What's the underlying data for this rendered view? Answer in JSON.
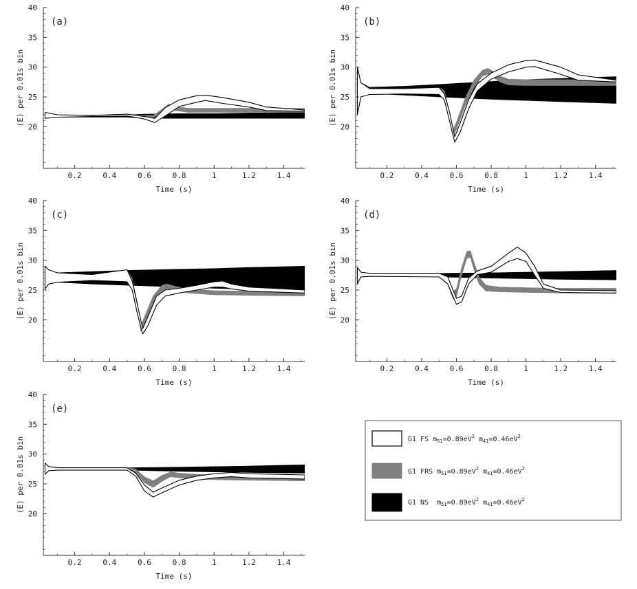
{
  "chart_data": [
    {
      "type": "area",
      "panel": "(a)",
      "xlabel": "Time (s)",
      "ylabel": "⟨E⟩ per 0.01s bin",
      "xlim": [
        0.02,
        1.52
      ],
      "ylim": [
        13,
        40
      ],
      "xticks": [
        0.2,
        0.4,
        0.6,
        0.8,
        1.0,
        1.2,
        1.4
      ],
      "xtick_labels": [
        "0.2",
        "0.4",
        "0.6",
        "0.8",
        "1",
        "1.2",
        "1.4"
      ],
      "yticks": [
        20,
        25,
        30,
        35,
        40
      ],
      "series": [
        {
          "name": "G1 NS",
          "style": "black",
          "x": [
            0.03,
            0.1,
            0.5,
            0.6,
            0.8,
            1.0,
            1.2,
            1.52
          ],
          "lower": [
            21.6,
            21.6,
            21.6,
            21.4,
            21.4,
            21.4,
            21.4,
            21.4
          ],
          "upper": [
            22.2,
            21.9,
            22.0,
            22.1,
            22.2,
            22.2,
            22.3,
            22.4
          ]
        },
        {
          "name": "G1 FRS",
          "style": "gray",
          "x": [
            0.03,
            0.1,
            0.3,
            0.5,
            0.6,
            0.65,
            0.7,
            0.74,
            0.78,
            0.85,
            1.0,
            1.2,
            1.52
          ],
          "lower": [
            21.4,
            21.6,
            21.7,
            21.8,
            21.6,
            21.5,
            22.3,
            23.0,
            22.7,
            22.4,
            22.4,
            22.4,
            22.4
          ],
          "upper": [
            22.4,
            22.0,
            21.9,
            22.1,
            21.9,
            21.9,
            22.9,
            23.8,
            23.4,
            23.1,
            23.1,
            23.1,
            23.1
          ]
        },
        {
          "name": "G1 FS",
          "style": "white",
          "x": [
            0.03,
            0.1,
            0.3,
            0.5,
            0.6,
            0.66,
            0.72,
            0.8,
            0.9,
            0.95,
            1.05,
            1.2,
            1.3,
            1.52
          ],
          "lower": [
            21.4,
            21.6,
            21.7,
            21.8,
            21.3,
            20.7,
            21.8,
            23.4,
            24.1,
            24.4,
            23.9,
            23.3,
            22.7,
            22.6
          ],
          "upper": [
            22.4,
            22.0,
            21.9,
            22.1,
            21.7,
            21.4,
            23.2,
            24.5,
            25.2,
            25.3,
            24.9,
            24.1,
            23.3,
            22.8
          ]
        }
      ]
    },
    {
      "type": "area",
      "panel": "(b)",
      "xlabel": "Time (s)",
      "ylabel": "⟨E⟩ per 0.01s bin",
      "xlim": [
        0.02,
        1.52
      ],
      "ylim": [
        13,
        40
      ],
      "xticks": [
        0.2,
        0.4,
        0.6,
        0.8,
        1.0,
        1.2,
        1.4
      ],
      "xtick_labels": [
        "0.2",
        "0.4",
        "0.6",
        "0.8",
        "1",
        "1.2",
        "1.4"
      ],
      "yticks": [
        20,
        25,
        30,
        35,
        40
      ],
      "series": [
        {
          "name": "G1 NS",
          "style": "black",
          "x": [
            0.03,
            0.05,
            0.1,
            0.3,
            0.5,
            0.8,
            1.0,
            1.2,
            1.52
          ],
          "lower": [
            22.0,
            25.0,
            25.6,
            25.3,
            25.0,
            24.6,
            24.4,
            24.2,
            23.9
          ],
          "upper": [
            30.0,
            27.4,
            26.6,
            26.8,
            27.1,
            27.6,
            27.9,
            28.1,
            28.4
          ]
        },
        {
          "name": "G1 FRS",
          "style": "gray",
          "x": [
            0.03,
            0.05,
            0.1,
            0.3,
            0.5,
            0.53,
            0.56,
            0.58,
            0.6,
            0.65,
            0.7,
            0.75,
            0.78,
            0.8,
            0.85,
            0.9,
            1.0,
            1.2,
            1.52
          ],
          "lower": [
            22.0,
            25.0,
            25.4,
            25.5,
            25.4,
            25.0,
            21.5,
            18.5,
            19.5,
            23.5,
            26.5,
            28.5,
            28.8,
            28.5,
            27.5,
            27.0,
            26.9,
            26.9,
            26.9
          ],
          "upper": [
            30.0,
            27.4,
            26.4,
            26.4,
            26.6,
            26.0,
            22.5,
            19.5,
            20.8,
            24.8,
            27.8,
            29.5,
            29.8,
            29.5,
            28.5,
            28.0,
            27.9,
            27.9,
            27.9
          ]
        },
        {
          "name": "G1 FS",
          "style": "white",
          "x": [
            0.03,
            0.05,
            0.1,
            0.3,
            0.5,
            0.53,
            0.56,
            0.59,
            0.62,
            0.67,
            0.72,
            0.8,
            0.9,
            1.0,
            1.05,
            1.2,
            1.3,
            1.52
          ],
          "lower": [
            22.0,
            25.0,
            25.4,
            25.5,
            25.4,
            24.5,
            21.0,
            17.4,
            19.0,
            23.0,
            26.0,
            28.0,
            29.2,
            30.0,
            30.1,
            28.8,
            27.8,
            27.5
          ],
          "upper": [
            30.0,
            27.4,
            26.4,
            26.4,
            26.6,
            25.5,
            22.5,
            18.3,
            20.5,
            24.5,
            27.2,
            29.0,
            30.4,
            31.1,
            31.2,
            30.0,
            28.7,
            27.8
          ]
        }
      ]
    },
    {
      "type": "area",
      "panel": "(c)",
      "xlabel": "Time (s)",
      "ylabel": "⟨E⟩ per 0.01s bin",
      "xlim": [
        0.02,
        1.52
      ],
      "ylim": [
        13,
        40
      ],
      "xticks": [
        0.2,
        0.4,
        0.6,
        0.8,
        1.0,
        1.2,
        1.4
      ],
      "xtick_labels": [
        "0.2",
        "0.4",
        "0.6",
        "0.8",
        "1",
        "1.2",
        "1.4"
      ],
      "yticks": [
        20,
        25,
        30,
        35,
        40
      ],
      "series": [
        {
          "name": "G1 NS",
          "style": "black",
          "x": [
            0.03,
            0.05,
            0.1,
            0.3,
            0.5,
            0.8,
            1.0,
            1.2,
            1.52
          ],
          "lower": [
            25.2,
            26.0,
            26.3,
            26.0,
            25.8,
            25.5,
            25.3,
            25.1,
            24.8
          ],
          "upper": [
            29.0,
            28.4,
            27.9,
            28.1,
            28.3,
            28.5,
            28.6,
            28.8,
            29.0
          ]
        },
        {
          "name": "G1 FRS",
          "style": "gray",
          "x": [
            0.03,
            0.05,
            0.1,
            0.3,
            0.5,
            0.53,
            0.56,
            0.58,
            0.6,
            0.65,
            0.7,
            0.73,
            0.78,
            0.85,
            1.0,
            1.2,
            1.52
          ],
          "lower": [
            25.2,
            26.0,
            26.3,
            26.6,
            26.4,
            25.5,
            21.5,
            18.0,
            19.0,
            22.5,
            24.8,
            25.2,
            24.9,
            24.5,
            24.2,
            24.1,
            24.0
          ],
          "upper": [
            29.0,
            28.4,
            27.9,
            27.6,
            28.4,
            27.0,
            22.8,
            19.0,
            20.5,
            24.0,
            25.8,
            26.0,
            25.6,
            25.2,
            24.9,
            24.8,
            24.8
          ]
        },
        {
          "name": "G1 FS",
          "style": "white",
          "x": [
            0.03,
            0.05,
            0.1,
            0.3,
            0.5,
            0.53,
            0.56,
            0.59,
            0.62,
            0.67,
            0.72,
            0.8,
            0.9,
            1.0,
            1.05,
            1.1,
            1.2,
            1.52
          ],
          "lower": [
            25.2,
            26.0,
            26.3,
            26.6,
            26.4,
            25.0,
            21.0,
            17.6,
            19.0,
            22.5,
            24.0,
            24.5,
            25.0,
            25.5,
            25.5,
            25.2,
            24.8,
            24.5
          ],
          "upper": [
            29.0,
            28.4,
            27.9,
            27.6,
            28.4,
            26.5,
            22.5,
            18.5,
            20.5,
            24.0,
            25.0,
            25.3,
            25.8,
            26.4,
            26.5,
            26.0,
            25.5,
            25.0
          ]
        }
      ]
    },
    {
      "type": "area",
      "panel": "(d)",
      "xlabel": "Time (s)",
      "ylabel": "⟨E⟩ per 0.01s bin",
      "xlim": [
        0.02,
        1.52
      ],
      "ylim": [
        13,
        40
      ],
      "xticks": [
        0.2,
        0.4,
        0.6,
        0.8,
        1.0,
        1.2,
        1.4
      ],
      "xtick_labels": [
        "0.2",
        "0.4",
        "0.6",
        "0.8",
        "1",
        "1.2",
        "1.4"
      ],
      "yticks": [
        20,
        25,
        30,
        35,
        40
      ],
      "series": [
        {
          "name": "G1 NS",
          "style": "black",
          "x": [
            0.03,
            0.05,
            0.1,
            0.5,
            0.8,
            1.0,
            1.2,
            1.52
          ],
          "lower": [
            26.0,
            27.2,
            27.3,
            27.2,
            27.0,
            26.9,
            26.8,
            26.7
          ],
          "upper": [
            28.8,
            28.0,
            27.8,
            27.8,
            27.9,
            28.0,
            28.1,
            28.3
          ]
        },
        {
          "name": "G1 FRS",
          "style": "gray",
          "x": [
            0.03,
            0.05,
            0.1,
            0.5,
            0.55,
            0.58,
            0.6,
            0.63,
            0.66,
            0.68,
            0.7,
            0.73,
            0.77,
            0.85,
            1.0,
            1.2,
            1.52
          ],
          "lower": [
            26.0,
            27.2,
            27.3,
            27.2,
            26.0,
            23.5,
            23.8,
            27.5,
            30.3,
            30.5,
            28.5,
            26.0,
            24.8,
            24.7,
            24.6,
            24.5,
            24.4
          ],
          "upper": [
            28.8,
            28.0,
            27.8,
            27.8,
            27.0,
            24.8,
            25.2,
            28.8,
            31.5,
            31.6,
            29.8,
            27.2,
            25.8,
            25.5,
            25.4,
            25.3,
            25.3
          ]
        },
        {
          "name": "G1 FS",
          "style": "white",
          "x": [
            0.03,
            0.05,
            0.1,
            0.5,
            0.55,
            0.6,
            0.63,
            0.67,
            0.72,
            0.8,
            0.9,
            0.95,
            1.0,
            1.05,
            1.1,
            1.2,
            1.52
          ],
          "lower": [
            26.0,
            27.2,
            27.3,
            27.2,
            26.0,
            22.6,
            23.0,
            26.0,
            27.6,
            28.0,
            29.8,
            30.3,
            29.8,
            27.5,
            25.3,
            24.6,
            24.5
          ],
          "upper": [
            28.8,
            28.0,
            27.8,
            27.8,
            27.2,
            23.6,
            24.0,
            27.0,
            28.2,
            29.0,
            31.2,
            32.2,
            31.2,
            29.0,
            26.0,
            25.0,
            24.9
          ]
        }
      ]
    },
    {
      "type": "area",
      "panel": "(e)",
      "xlabel": "Time (s)",
      "ylabel": "⟨E⟩ per 0.01s bin",
      "xlim": [
        0.02,
        1.52
      ],
      "ylim": [
        13,
        40
      ],
      "xticks": [
        0.2,
        0.4,
        0.6,
        0.8,
        1.0,
        1.2,
        1.4
      ],
      "xtick_labels": [
        "0.2",
        "0.4",
        "0.6",
        "0.8",
        "1",
        "1.2",
        "1.4"
      ],
      "yticks": [
        20,
        25,
        30,
        35,
        40
      ],
      "series": [
        {
          "name": "G1 NS",
          "style": "black",
          "x": [
            0.03,
            0.05,
            0.1,
            0.5,
            0.8,
            1.0,
            1.2,
            1.52
          ],
          "lower": [
            26.6,
            27.2,
            27.3,
            27.3,
            27.1,
            27.0,
            26.9,
            26.8
          ],
          "upper": [
            28.5,
            27.9,
            27.7,
            27.7,
            27.8,
            27.9,
            28.0,
            28.2
          ]
        },
        {
          "name": "G1 FRS",
          "style": "gray",
          "x": [
            0.03,
            0.05,
            0.1,
            0.5,
            0.55,
            0.6,
            0.65,
            0.7,
            0.75,
            0.8,
            0.9,
            1.0,
            1.2,
            1.52
          ],
          "lower": [
            26.6,
            27.2,
            27.3,
            27.3,
            26.8,
            25.2,
            24.4,
            25.4,
            26.2,
            26.0,
            25.8,
            25.7,
            25.6,
            25.5
          ],
          "upper": [
            28.5,
            27.9,
            27.7,
            27.7,
            27.5,
            26.2,
            25.5,
            26.4,
            27.0,
            26.8,
            26.6,
            26.5,
            26.4,
            26.3
          ]
        },
        {
          "name": "G1 FS",
          "style": "white",
          "x": [
            0.03,
            0.05,
            0.1,
            0.5,
            0.55,
            0.6,
            0.65,
            0.7,
            0.8,
            0.9,
            1.0,
            1.1,
            1.2,
            1.52
          ],
          "lower": [
            26.6,
            27.2,
            27.3,
            27.3,
            26.3,
            23.8,
            22.8,
            23.5,
            24.8,
            25.6,
            26.0,
            26.2,
            26.0,
            25.8
          ],
          "upper": [
            28.5,
            27.9,
            27.7,
            27.7,
            26.8,
            24.8,
            23.6,
            24.3,
            25.6,
            26.3,
            26.7,
            26.9,
            26.7,
            26.5
          ]
        }
      ]
    }
  ],
  "legend": {
    "items": [
      {
        "swatch": "#ffffff",
        "label": "G1 FS",
        "m51": "m",
        "m51_sub": "51",
        "m51_val": "=0.89eV",
        "m51_sup": "2",
        "m41": "m",
        "m41_sub": "41",
        "m41_val": "=0.46eV",
        "m41_sup": "2"
      },
      {
        "swatch": "#808080",
        "label": "G1 FRS",
        "m51": "m",
        "m51_sub": "51",
        "m51_val": "=0.89eV",
        "m51_sup": "2",
        "m41": "m",
        "m41_sub": "41",
        "m41_val": "=0.46eV",
        "m41_sup": "2"
      },
      {
        "swatch": "#000000",
        "label": "G1 NS",
        "m51": "m",
        "m51_sub": "51",
        "m51_val": "=0.89eV",
        "m51_sup": "2",
        "m41": "m",
        "m41_sub": "41",
        "m41_val": "=0.46eV",
        "m41_sup": "2"
      }
    ]
  },
  "colors": {
    "black": "#000000",
    "gray": "#808080",
    "white": "#ffffff",
    "frame": "#333333"
  }
}
